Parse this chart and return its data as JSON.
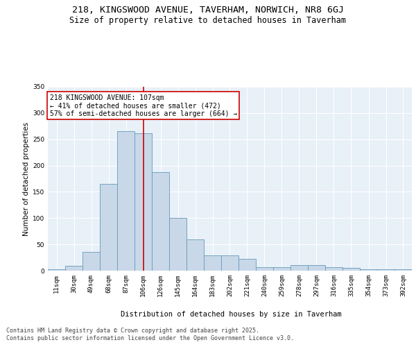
{
  "title_line1": "218, KINGSWOOD AVENUE, TAVERHAM, NORWICH, NR8 6GJ",
  "title_line2": "Size of property relative to detached houses in Taverham",
  "xlabel": "Distribution of detached houses by size in Taverham",
  "ylabel": "Number of detached properties",
  "bar_color": "#c8d8e8",
  "bar_edge_color": "#6699bb",
  "background_color": "#e8f0f8",
  "grid_color": "#ffffff",
  "annotation_line1": "218 KINGSWOOD AVENUE: 107sqm",
  "annotation_line2": "← 41% of detached houses are smaller (472)",
  "annotation_line3": "57% of semi-detached houses are larger (664) →",
  "vline_value": 107,
  "vline_color": "#cc0000",
  "annotation_box_color": "#cc0000",
  "categories": [
    "11sqm",
    "30sqm",
    "49sqm",
    "68sqm",
    "87sqm",
    "106sqm",
    "126sqm",
    "145sqm",
    "164sqm",
    "183sqm",
    "202sqm",
    "221sqm",
    "240sqm",
    "259sqm",
    "278sqm",
    "297sqm",
    "316sqm",
    "335sqm",
    "354sqm",
    "373sqm",
    "392sqm"
  ],
  "bin_edges": [
    2,
    21,
    40,
    59,
    78,
    97,
    116,
    135,
    154,
    173,
    192,
    211,
    230,
    249,
    268,
    287,
    306,
    325,
    344,
    363,
    382,
    401
  ],
  "values": [
    2,
    9,
    36,
    165,
    265,
    262,
    188,
    100,
    60,
    29,
    29,
    22,
    6,
    6,
    10,
    10,
    7,
    5,
    3,
    2,
    3
  ],
  "ylim": [
    0,
    350
  ],
  "yticks": [
    0,
    50,
    100,
    150,
    200,
    250,
    300,
    350
  ],
  "footer_line1": "Contains HM Land Registry data © Crown copyright and database right 2025.",
  "footer_line2": "Contains public sector information licensed under the Open Government Licence v3.0.",
  "title_fontsize": 9.5,
  "subtitle_fontsize": 8.5,
  "axis_label_fontsize": 7.5,
  "tick_fontsize": 6.5,
  "annot_fontsize": 7,
  "footer_fontsize": 6
}
